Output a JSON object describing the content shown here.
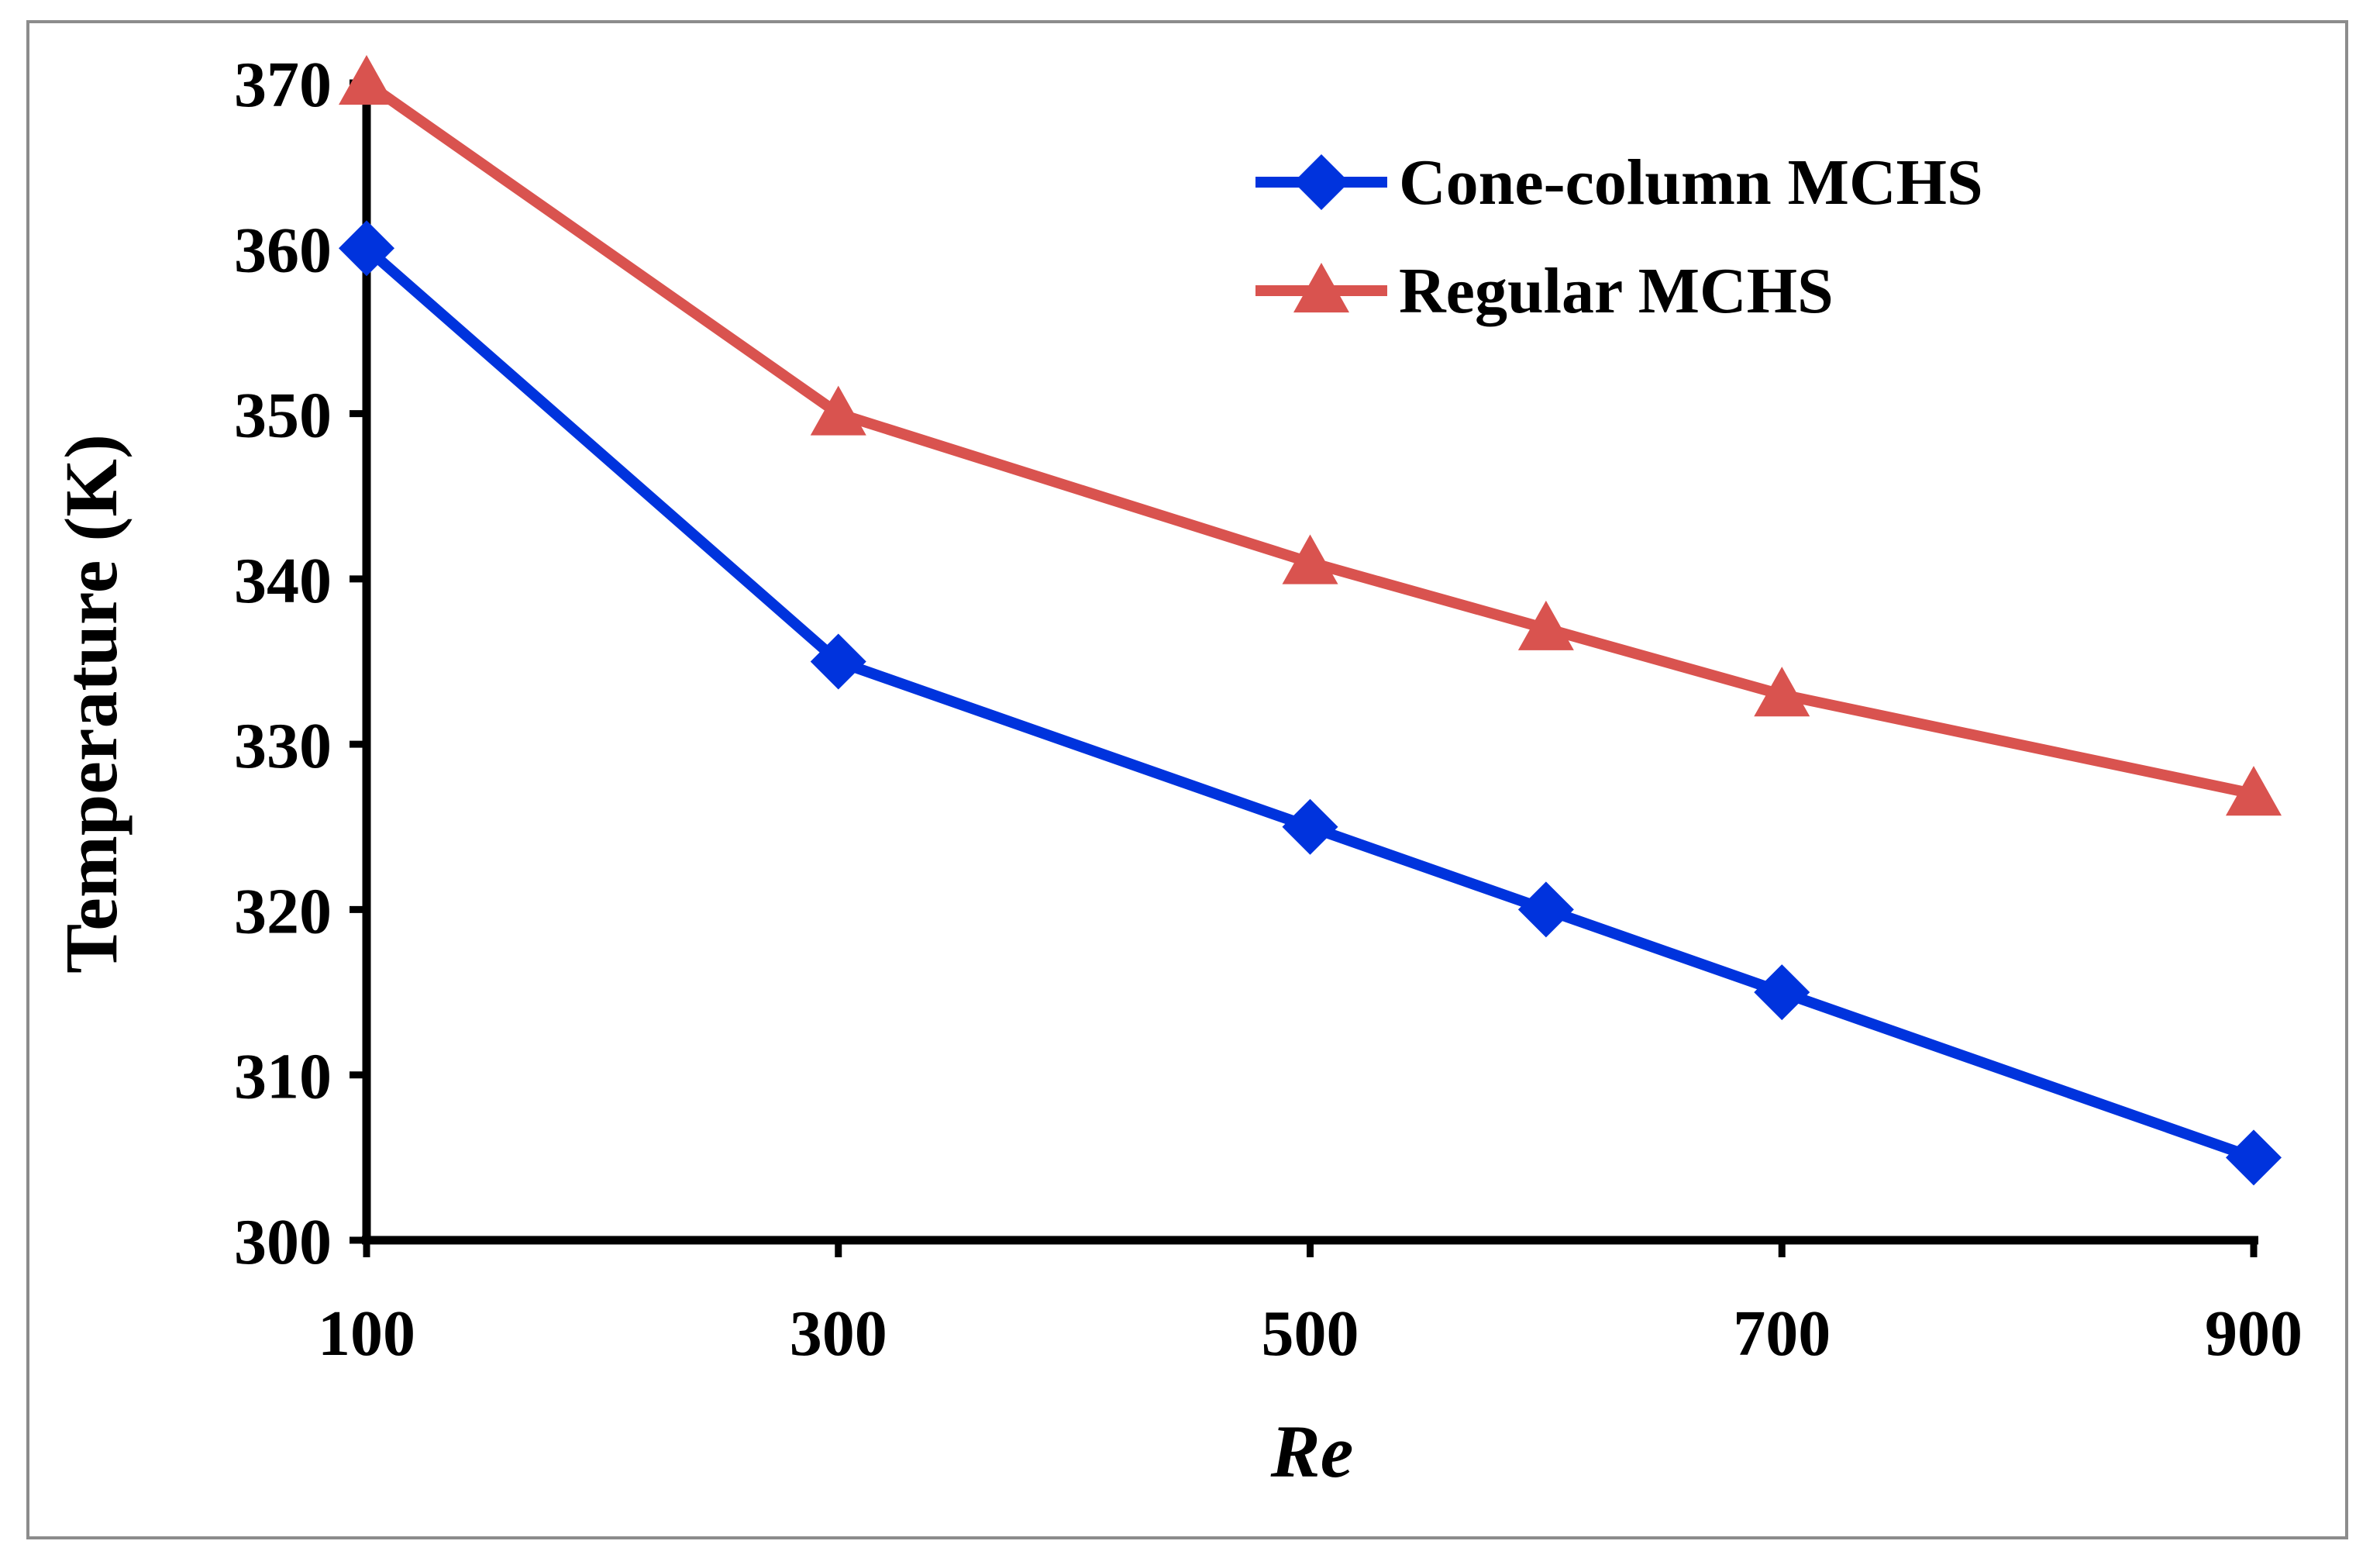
{
  "chart_data": {
    "type": "line",
    "title": "",
    "xlabel": "Re",
    "ylabel": "Temperature (K)",
    "x": [
      100,
      300,
      500,
      600,
      700,
      900
    ],
    "xticks": [
      100,
      300,
      500,
      700,
      900
    ],
    "xlim": [
      100,
      900
    ],
    "yticks": [
      300,
      310,
      320,
      330,
      340,
      350,
      360,
      370
    ],
    "ylim": [
      300,
      370
    ],
    "grid": false,
    "legend_position": "top-right",
    "series": [
      {
        "name": "Cone-column MCHS",
        "marker": "diamond",
        "color": "#0033dd",
        "values": [
          360,
          335,
          325,
          320,
          315,
          305
        ]
      },
      {
        "name": "Regular MCHS",
        "marker": "triangle",
        "color": "#d9534f",
        "values": [
          370,
          350,
          341,
          337,
          333,
          327
        ]
      }
    ]
  }
}
